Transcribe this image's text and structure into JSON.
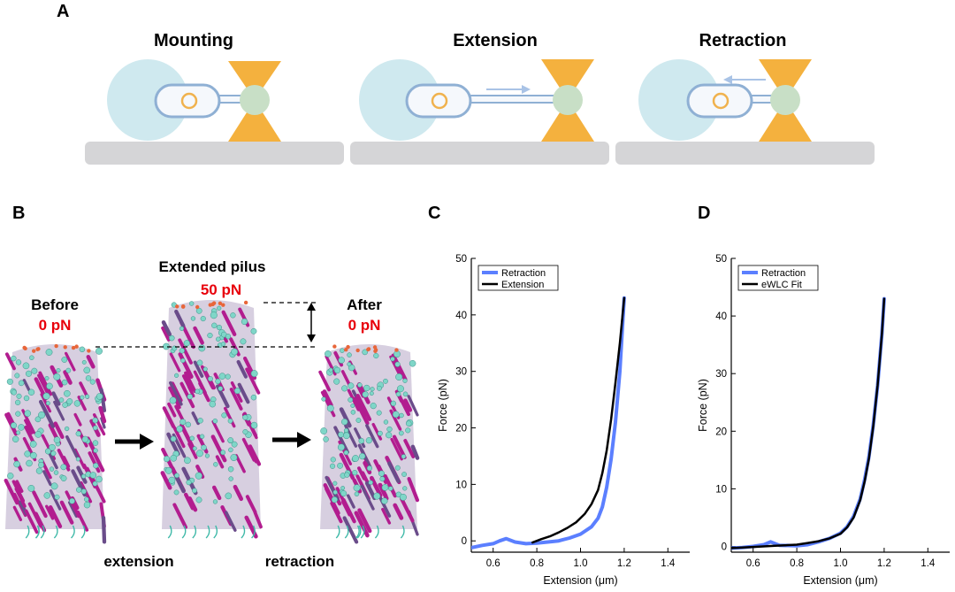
{
  "colors": {
    "bead": "#cfe9ef",
    "trap": "#f4b13e",
    "trap_bead": "#c8dfc6",
    "cell_outline": "#8fb0d4",
    "cell_fill": "#f5f8fc",
    "nucleoid": "#f0b24e",
    "surface": "#d5d5d7",
    "retraction": "#5b7fff",
    "extension": "#000000",
    "force_red": "#e8000b",
    "helix": "#b21d8f",
    "subunit": "#7fd6c8"
  },
  "panel_a": {
    "letter": "A",
    "stages": [
      {
        "title": "Mounting"
      },
      {
        "title": "Extension"
      },
      {
        "title": "Retraction"
      }
    ]
  },
  "panel_b": {
    "letter": "B",
    "before_title": "Before",
    "before_force": "0 pN",
    "extended_title": "Extended pilus",
    "extended_force": "50 pN",
    "after_title": "After",
    "after_force": "0 pN",
    "caption_left": "extension",
    "caption_right": "retraction"
  },
  "chart_data": [
    {
      "panel": "C",
      "type": "line",
      "xlabel": "Extension (μm)",
      "ylabel": "Force (pN)",
      "xlim": [
        0.5,
        1.5
      ],
      "ylim": [
        -2,
        50
      ],
      "xticks": [
        "0.6",
        "0.8",
        "1.0",
        "1.2",
        "1.4"
      ],
      "yticks": [
        "0",
        "10",
        "20",
        "30",
        "40",
        "50"
      ],
      "legend_position": "top-left",
      "series": [
        {
          "name": "Retraction",
          "color": "#5b7fff",
          "x": [
            0.5,
            0.55,
            0.6,
            0.63,
            0.66,
            0.7,
            0.75,
            0.8,
            0.85,
            0.9,
            0.95,
            1.0,
            1.05,
            1.08,
            1.1,
            1.12,
            1.14,
            1.16,
            1.18,
            1.19,
            1.2
          ],
          "y": [
            -1.2,
            -0.8,
            -0.5,
            0.0,
            0.4,
            -0.2,
            -0.5,
            -0.4,
            -0.2,
            0.0,
            0.5,
            1.2,
            2.5,
            4.0,
            6.0,
            9.5,
            14.5,
            21.0,
            30.0,
            36.5,
            43.0
          ]
        },
        {
          "name": "Extension",
          "color": "#000000",
          "x": [
            0.78,
            0.82,
            0.86,
            0.9,
            0.94,
            0.98,
            1.02,
            1.05,
            1.08,
            1.1,
            1.12,
            1.14,
            1.16,
            1.18,
            1.2
          ],
          "y": [
            -0.3,
            0.3,
            0.8,
            1.5,
            2.3,
            3.3,
            4.8,
            6.5,
            9.0,
            12.0,
            16.0,
            21.5,
            28.0,
            35.0,
            43.0
          ]
        }
      ]
    },
    {
      "panel": "D",
      "type": "line",
      "xlabel": "Extension (μm)",
      "ylabel": "Force (pN)",
      "xlim": [
        0.5,
        1.5
      ],
      "ylim": [
        -1,
        50
      ],
      "xticks": [
        "0.6",
        "0.8",
        "1.0",
        "1.2",
        "1.4"
      ],
      "yticks": [
        "0",
        "10",
        "20",
        "30",
        "40",
        "50"
      ],
      "legend_position": "top-left",
      "series": [
        {
          "name": "Retraction",
          "color": "#5b7fff",
          "x": [
            0.5,
            0.55,
            0.6,
            0.65,
            0.68,
            0.72,
            0.8,
            0.85,
            0.9,
            0.95,
            1.0,
            1.03,
            1.06,
            1.09,
            1.11,
            1.13,
            1.15,
            1.17,
            1.19,
            1.2
          ],
          "y": [
            -0.3,
            -0.2,
            0.0,
            0.3,
            0.8,
            0.2,
            0.1,
            0.3,
            0.8,
            1.4,
            2.3,
            3.4,
            5.2,
            8.2,
            11.5,
            15.5,
            21.0,
            28.0,
            37.0,
            43.0
          ]
        },
        {
          "name": "eWLC Fit",
          "color": "#000000",
          "x": [
            0.5,
            0.6,
            0.7,
            0.8,
            0.85,
            0.9,
            0.95,
            1.0,
            1.03,
            1.06,
            1.09,
            1.11,
            1.13,
            1.15,
            1.17,
            1.19,
            1.2
          ],
          "y": [
            -0.3,
            -0.1,
            0.1,
            0.3,
            0.6,
            0.9,
            1.4,
            2.2,
            3.3,
            5.0,
            8.0,
            11.2,
            15.2,
            20.8,
            28.0,
            37.0,
            43.0
          ]
        }
      ]
    }
  ]
}
